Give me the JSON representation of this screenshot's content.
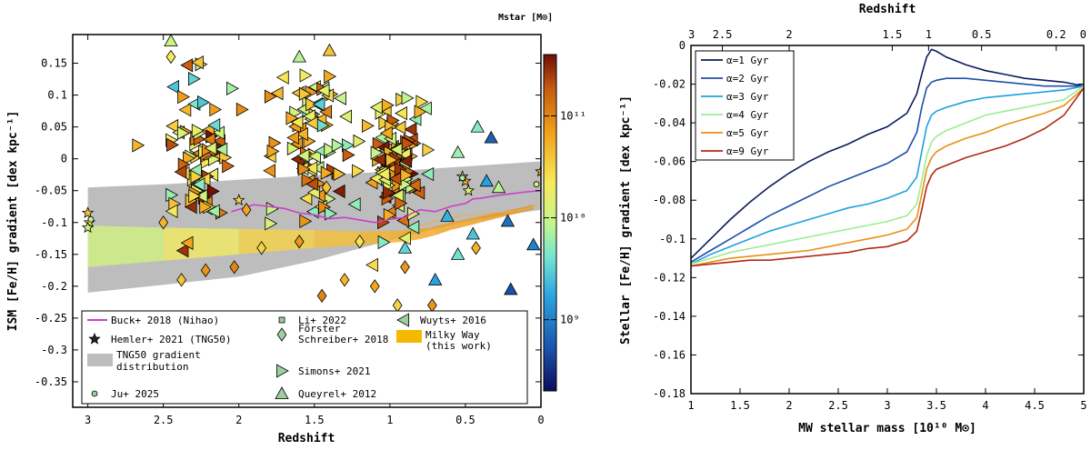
{
  "chart_data": [
    {
      "type": "scatter",
      "panel": "left",
      "xlabel": "Redshift",
      "ylabel": "ISM [Fe/H] gradient [dex kpc⁻¹]",
      "xlim": [
        3.1,
        0
      ],
      "ylim": [
        -0.39,
        0.195
      ],
      "xticks": [
        3,
        2.5,
        2,
        1.5,
        1,
        0.5,
        0
      ],
      "xtick_labels": [
        "3",
        "2.5",
        "2",
        "1.5",
        "1",
        "0.5",
        "0"
      ],
      "yticks": [
        0.15,
        0.1,
        0.05,
        0,
        -0.05,
        -0.1,
        -0.15,
        -0.2,
        -0.25,
        -0.3,
        -0.35
      ],
      "ytick_labels": [
        "0.15",
        "0.1",
        "0.05",
        "0",
        "-0.05",
        "-0.1",
        "-0.15",
        "-0.2",
        "-0.25",
        "-0.3",
        "-0.35"
      ],
      "colorbar": {
        "label": "Mstar [M⊙]",
        "scale": "log",
        "range": [
          200000000,
          400000000000
        ],
        "ticks": [
          1000000000,
          10000000000,
          100000000000
        ],
        "tick_labels": [
          "10⁹",
          "10¹⁰",
          "10¹¹"
        ]
      },
      "legend": [
        {
          "label": "Buck+ 2018 (Nihao)",
          "marker": "line",
          "color": "#cc3fcc"
        },
        {
          "label": "Hemler+ 2021 (TNG50)",
          "marker": "star"
        },
        {
          "label": "TNG50 gradient distribution",
          "marker": "band",
          "color": "#bdbdbd"
        },
        {
          "label": "Ju+ 2025",
          "marker": "circle"
        },
        {
          "label": "Li+ 2022",
          "marker": "square"
        },
        {
          "label": "Förster Schreiber+ 2018",
          "marker": "diamond"
        },
        {
          "label": "Simons+ 2021",
          "marker": "triangle-right"
        },
        {
          "label": "Queyrel+ 2012",
          "marker": "triangle-up"
        },
        {
          "label": "Wuyts+ 2016",
          "marker": "triangle-left"
        },
        {
          "label": "Milky Way (this work)",
          "marker": "band",
          "color": "#f5b800"
        }
      ],
      "series": [
        {
          "name": "TNG50 gradient distribution",
          "type": "band",
          "x": [
            3,
            2.5,
            2,
            1.5,
            1,
            0.5,
            0
          ],
          "upper": [
            -0.045,
            -0.04,
            -0.033,
            -0.026,
            -0.02,
            -0.012,
            -0.004
          ],
          "lower": [
            -0.21,
            -0.198,
            -0.185,
            -0.16,
            -0.128,
            -0.098,
            -0.08
          ]
        },
        {
          "name": "Buck+ 2018 (Nihao)",
          "type": "line",
          "x": [
            2.05,
            1.9,
            1.8,
            1.7,
            1.6,
            1.5,
            1.4,
            1.3,
            1.2,
            1.1,
            1.0,
            0.9,
            0.85,
            0.8,
            0.7,
            0.6,
            0.5,
            0.45,
            0.4,
            0.3,
            0.2,
            0.1,
            0.0
          ],
          "y": [
            -0.083,
            -0.072,
            -0.075,
            -0.078,
            -0.085,
            -0.088,
            -0.094,
            -0.092,
            -0.096,
            -0.1,
            -0.095,
            -0.092,
            -0.085,
            -0.08,
            -0.083,
            -0.075,
            -0.07,
            -0.063,
            -0.062,
            -0.058,
            -0.055,
            -0.052,
            -0.05
          ]
        },
        {
          "name": "Milky Way (this work)",
          "type": "band",
          "x": [
            3.0,
            2.5,
            2.0,
            1.5,
            1.2,
            1.0,
            0.9,
            0.8,
            0.7,
            0.6,
            0.5,
            0.4,
            0.3,
            0.2,
            0.1,
            0.05
          ],
          "upper": [
            -0.105,
            -0.108,
            -0.11,
            -0.112,
            -0.114,
            -0.113,
            -0.112,
            -0.11,
            -0.106,
            -0.1,
            -0.095,
            -0.09,
            -0.085,
            -0.08,
            -0.075,
            -0.072
          ],
          "lower": [
            -0.17,
            -0.16,
            -0.15,
            -0.14,
            -0.135,
            -0.132,
            -0.13,
            -0.126,
            -0.12,
            -0.112,
            -0.106,
            -0.1,
            -0.094,
            -0.088,
            -0.082,
            -0.079
          ]
        }
      ],
      "points": [
        {
          "x": 3.0,
          "y": -0.085,
          "m": "star",
          "logm": 10.6
        },
        {
          "x": 2.99,
          "y": -0.1,
          "m": "star",
          "logm": 10.4
        },
        {
          "x": 3.0,
          "y": -0.108,
          "m": "star",
          "logm": 10.0
        },
        {
          "x": 0.5,
          "y": -0.035,
          "m": "star",
          "logm": 10.7
        },
        {
          "x": 0.48,
          "y": -0.05,
          "m": "star",
          "logm": 10.2
        },
        {
          "x": 0.52,
          "y": -0.028,
          "m": "star",
          "logm": 9.9
        },
        {
          "x": 0.0,
          "y": -0.02,
          "m": "star",
          "logm": 10.8
        },
        {
          "x": 2.0,
          "y": -0.065,
          "m": "star",
          "logm": 10.5
        },
        {
          "x": 2.98,
          "y": -0.095,
          "m": "circle",
          "logm": 9.9
        },
        {
          "x": 0.52,
          "y": -0.03,
          "m": "circle",
          "logm": 9.8
        },
        {
          "x": 0.03,
          "y": -0.04,
          "m": "circle",
          "logm": 10.1
        },
        {
          "x": 2.45,
          "y": 0.16,
          "m": "diamond",
          "logm": 10.3
        },
        {
          "x": 2.5,
          "y": -0.1,
          "m": "diamond",
          "logm": 10.7
        },
        {
          "x": 2.38,
          "y": -0.19,
          "m": "diamond",
          "logm": 10.6
        },
        {
          "x": 2.22,
          "y": -0.175,
          "m": "diamond",
          "logm": 10.9
        },
        {
          "x": 2.03,
          "y": -0.17,
          "m": "diamond",
          "logm": 11.0
        },
        {
          "x": 1.95,
          "y": -0.08,
          "m": "diamond",
          "logm": 10.8
        },
        {
          "x": 1.85,
          "y": -0.14,
          "m": "diamond",
          "logm": 10.5
        },
        {
          "x": 1.6,
          "y": -0.13,
          "m": "diamond",
          "logm": 10.9
        },
        {
          "x": 1.45,
          "y": -0.215,
          "m": "diamond",
          "logm": 11.0
        },
        {
          "x": 1.42,
          "y": -0.045,
          "m": "diamond",
          "logm": 10.6
        },
        {
          "x": 1.3,
          "y": -0.19,
          "m": "diamond",
          "logm": 10.7
        },
        {
          "x": 1.2,
          "y": -0.13,
          "m": "diamond",
          "logm": 10.4
        },
        {
          "x": 1.1,
          "y": -0.2,
          "m": "diamond",
          "logm": 10.8
        },
        {
          "x": 0.95,
          "y": -0.23,
          "m": "diamond",
          "logm": 10.5
        },
        {
          "x": 0.9,
          "y": -0.17,
          "m": "diamond",
          "logm": 10.9
        },
        {
          "x": 0.72,
          "y": -0.23,
          "m": "diamond",
          "logm": 10.9
        },
        {
          "x": 0.43,
          "y": -0.14,
          "m": "diamond",
          "logm": 10.7
        },
        {
          "x": 2.45,
          "y": 0.185,
          "m": "triangle-up",
          "logm": 10.0
        },
        {
          "x": 1.6,
          "y": 0.16,
          "m": "triangle-up",
          "logm": 9.9
        },
        {
          "x": 1.4,
          "y": 0.17,
          "m": "triangle-up",
          "logm": 10.6
        },
        {
          "x": 0.42,
          "y": 0.05,
          "m": "triangle-up",
          "logm": 9.7
        },
        {
          "x": 0.36,
          "y": -0.035,
          "m": "triangle-up",
          "logm": 9.2
        },
        {
          "x": 0.33,
          "y": 0.033,
          "m": "triangle-up",
          "logm": 8.8
        },
        {
          "x": 0.28,
          "y": -0.045,
          "m": "triangle-up",
          "logm": 9.9
        },
        {
          "x": 0.22,
          "y": -0.098,
          "m": "triangle-up",
          "logm": 8.9
        },
        {
          "x": 0.2,
          "y": -0.205,
          "m": "triangle-up",
          "logm": 8.7
        },
        {
          "x": 0.45,
          "y": -0.118,
          "m": "triangle-up",
          "logm": 9.4
        },
        {
          "x": 0.55,
          "y": -0.15,
          "m": "triangle-up",
          "logm": 9.6
        },
        {
          "x": 0.62,
          "y": -0.09,
          "m": "triangle-up",
          "logm": 9.3
        },
        {
          "x": 0.05,
          "y": -0.135,
          "m": "triangle-up",
          "logm": 9.0
        },
        {
          "x": 0.7,
          "y": -0.19,
          "m": "triangle-up",
          "logm": 9.2
        },
        {
          "x": 0.55,
          "y": 0.01,
          "m": "triangle-up",
          "logm": 9.8
        },
        {
          "x": 0.9,
          "y": -0.14,
          "m": "triangle-up",
          "logm": 9.5
        }
      ],
      "cloud": [
        {
          "name": "z~2.3",
          "center_x": 2.25,
          "center_y": -0.005,
          "spread_x": 0.18,
          "spread_y": 0.09,
          "count": 80
        },
        {
          "name": "z~1.5",
          "center_x": 1.52,
          "center_y": 0.03,
          "spread_x": 0.25,
          "spread_y": 0.075,
          "count": 90
        },
        {
          "name": "z~0.9",
          "center_x": 0.95,
          "center_y": -0.01,
          "spread_x": 0.14,
          "spread_y": 0.07,
          "count": 110
        }
      ]
    },
    {
      "type": "line",
      "panel": "right",
      "xlabel": "MW stellar mass [10¹⁰ M⊙]",
      "ylabel": "Stellar [Fe/H] gradient [dex kpc⁻¹]",
      "top_xlabel": "Redshift",
      "xlim": [
        1,
        5
      ],
      "ylim": [
        -0.18,
        0
      ],
      "xticks": [
        1,
        1.5,
        2,
        2.5,
        3,
        3.5,
        4,
        4.5,
        5
      ],
      "xtick_labels": [
        "1",
        "1.5",
        "2",
        "2.5",
        "3",
        "3.5",
        "4",
        "4.5",
        "5"
      ],
      "yticks": [
        0,
        -0.02,
        -0.04,
        -0.06,
        -0.08,
        -0.1,
        -0.12,
        -0.14,
        -0.16,
        -0.18
      ],
      "ytick_labels": [
        "0",
        "-0.02",
        "-0.04",
        "-0.06",
        "-0.08",
        "-0.1",
        "-0.12",
        "-0.14",
        "-0.16",
        "-0.18"
      ],
      "top_xticks_at_mass": [
        1,
        1.32,
        2.0,
        3.05,
        3.42,
        3.96,
        4.72,
        5
      ],
      "top_xtick_labels": [
        "3",
        "2.5",
        "2",
        "1.5",
        "1",
        "0.5",
        "0.2",
        "0"
      ],
      "legend_position": "top-left",
      "x": [
        1,
        1.2,
        1.4,
        1.6,
        1.8,
        2,
        2.2,
        2.4,
        2.6,
        2.8,
        3,
        3.2,
        3.3,
        3.35,
        3.4,
        3.45,
        3.5,
        3.6,
        3.8,
        4,
        4.2,
        4.4,
        4.6,
        4.8,
        5
      ],
      "series": [
        {
          "name": "α=1 Gyr",
          "color": "#0d1b5e",
          "values": [
            -0.11,
            -0.1,
            -0.09,
            -0.081,
            -0.073,
            -0.066,
            -0.06,
            -0.055,
            -0.051,
            -0.046,
            -0.042,
            -0.035,
            -0.025,
            -0.015,
            -0.006,
            -0.002,
            -0.003,
            -0.006,
            -0.01,
            -0.013,
            -0.015,
            -0.017,
            -0.018,
            -0.019,
            -0.021
          ]
        },
        {
          "name": "α=2 Gyr",
          "color": "#1f4fa8",
          "values": [
            -0.112,
            -0.106,
            -0.1,
            -0.094,
            -0.088,
            -0.083,
            -0.078,
            -0.073,
            -0.069,
            -0.065,
            -0.061,
            -0.055,
            -0.045,
            -0.032,
            -0.022,
            -0.019,
            -0.018,
            -0.017,
            -0.017,
            -0.018,
            -0.019,
            -0.02,
            -0.021,
            -0.021,
            -0.021
          ]
        },
        {
          "name": "α=3 Gyr",
          "color": "#1ea0e0",
          "values": [
            -0.113,
            -0.108,
            -0.104,
            -0.1,
            -0.096,
            -0.093,
            -0.09,
            -0.087,
            -0.084,
            -0.082,
            -0.079,
            -0.075,
            -0.068,
            -0.055,
            -0.042,
            -0.036,
            -0.034,
            -0.032,
            -0.029,
            -0.027,
            -0.026,
            -0.025,
            -0.024,
            -0.023,
            -0.021
          ]
        },
        {
          "name": "α=4 Gyr",
          "color": "#9aed94",
          "values": [
            -0.113,
            -0.11,
            -0.107,
            -0.105,
            -0.103,
            -0.101,
            -0.099,
            -0.097,
            -0.095,
            -0.093,
            -0.091,
            -0.088,
            -0.082,
            -0.07,
            -0.057,
            -0.05,
            -0.047,
            -0.044,
            -0.04,
            -0.036,
            -0.034,
            -0.032,
            -0.03,
            -0.028,
            -0.021
          ]
        },
        {
          "name": "α=5 Gyr",
          "color": "#e89012",
          "values": [
            -0.114,
            -0.112,
            -0.11,
            -0.109,
            -0.108,
            -0.107,
            -0.106,
            -0.104,
            -0.102,
            -0.1,
            -0.098,
            -0.095,
            -0.089,
            -0.077,
            -0.064,
            -0.058,
            -0.055,
            -0.052,
            -0.048,
            -0.045,
            -0.041,
            -0.038,
            -0.035,
            -0.031,
            -0.022
          ]
        },
        {
          "name": "α=9 Gyr",
          "color": "#b02a14",
          "values": [
            -0.114,
            -0.113,
            -0.112,
            -0.111,
            -0.111,
            -0.11,
            -0.109,
            -0.108,
            -0.107,
            -0.105,
            -0.104,
            -0.101,
            -0.096,
            -0.085,
            -0.073,
            -0.067,
            -0.064,
            -0.062,
            -0.058,
            -0.055,
            -0.052,
            -0.048,
            -0.043,
            -0.036,
            -0.022
          ]
        }
      ]
    }
  ]
}
